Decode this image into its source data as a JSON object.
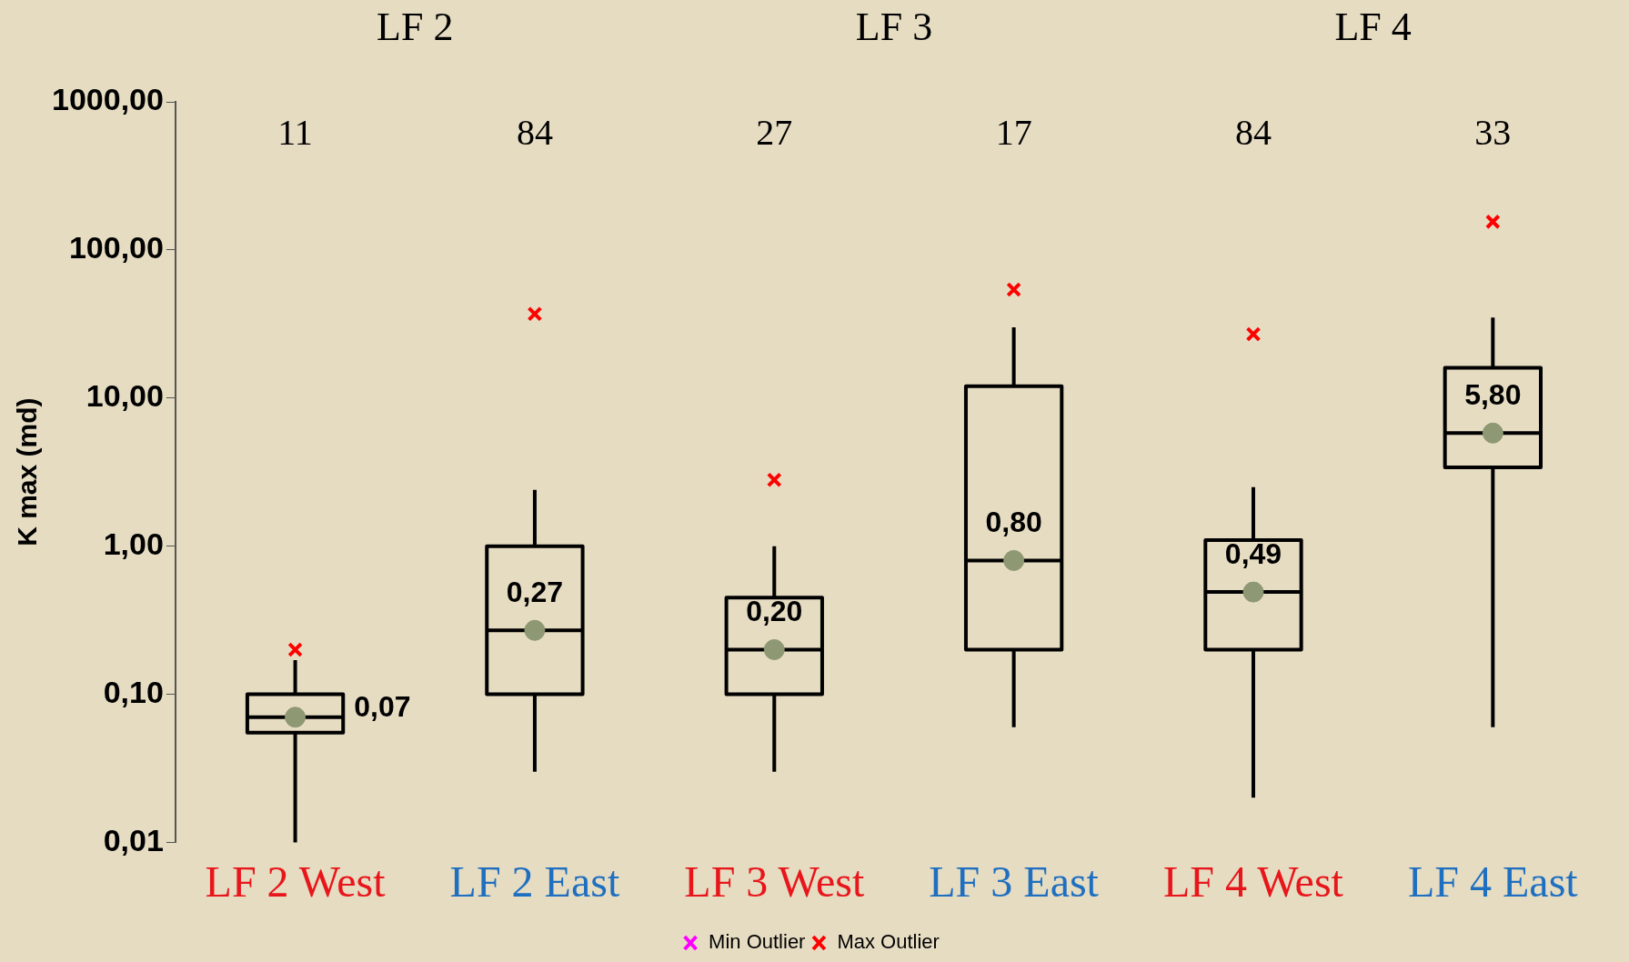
{
  "chart_data": {
    "type": "box",
    "ylabel": "K max (md)",
    "categories": [
      "LF 2 West",
      "LF 2 East",
      "LF 3 West",
      "LF 3 East",
      "LF 4 West",
      "LF 4 East"
    ],
    "boxes": [
      {
        "low": 0.01,
        "q1": 0.055,
        "median": 0.07,
        "q3": 0.1,
        "high": 0.17,
        "mean": 0.07
      },
      {
        "low": 0.03,
        "q1": 0.1,
        "median": 0.27,
        "q3": 1.0,
        "high": 2.4,
        "mean": 0.27
      },
      {
        "low": 0.03,
        "q1": 0.1,
        "median": 0.2,
        "q3": 0.45,
        "high": 1.0,
        "mean": 0.2
      },
      {
        "low": 0.06,
        "q1": 0.2,
        "median": 0.8,
        "q3": 12,
        "high": 30,
        "mean": 0.8
      },
      {
        "low": 0.02,
        "q1": 0.2,
        "median": 0.49,
        "q3": 1.1,
        "high": 2.5,
        "mean": 0.49
      },
      {
        "low": 0.06,
        "q1": 3.4,
        "median": 5.8,
        "q3": 16,
        "high": 35,
        "mean": 5.8
      }
    ],
    "series": [
      {
        "type": "scatter",
        "name": "Min Outlier",
        "color": "#ff00ff",
        "x": [
          "LF 2 West",
          "LF 2 East",
          "LF 3 West",
          "LF 3 East",
          "LF 4 West",
          "LF 4 East"
        ],
        "values": [
          null,
          null,
          null,
          null,
          null,
          null
        ]
      },
      {
        "type": "scatter",
        "name": "Max Outlier",
        "color": "#ff0000",
        "x": [
          "LF 2 West",
          "LF 2 East",
          "LF 3 West",
          "LF 3 East",
          "LF 4 West",
          "LF 4 East"
        ],
        "values": [
          0.2,
          37,
          2.8,
          54,
          27,
          155
        ]
      }
    ],
    "marker": "cross",
    "log": true,
    "ylim": [
      0.01,
      1000
    ],
    "yticks": [
      {
        "value": 0.01,
        "label": "0,01"
      },
      {
        "value": 0.1,
        "label": "0,10"
      },
      {
        "value": 1,
        "label": "1,00"
      },
      {
        "value": 10,
        "label": "10,00"
      },
      {
        "value": 100,
        "label": "100,00"
      },
      {
        "value": 1000,
        "label": "1000,00"
      }
    ],
    "grid": false,
    "legend": "bottom",
    "annotations": [
      "LF 2",
      "LF 3",
      "LF 4",
      "11",
      "84",
      "27",
      "17",
      "84",
      "33",
      {
        "text": "0,07",
        "x": "LF 2 West",
        "y": 0.07
      },
      {
        "text": "0,27",
        "x": "LF 2 East",
        "y": 0.27
      },
      {
        "text": "0,20",
        "x": "LF 3 West",
        "y": 0.2
      },
      {
        "text": "0,80",
        "x": "LF 3 East",
        "y": 0.8
      },
      {
        "text": "0,49",
        "x": "LF 4 West",
        "y": 0.49
      },
      {
        "text": "5,80",
        "x": "LF 4 East",
        "y": 5.8
      }
    ]
  }
}
